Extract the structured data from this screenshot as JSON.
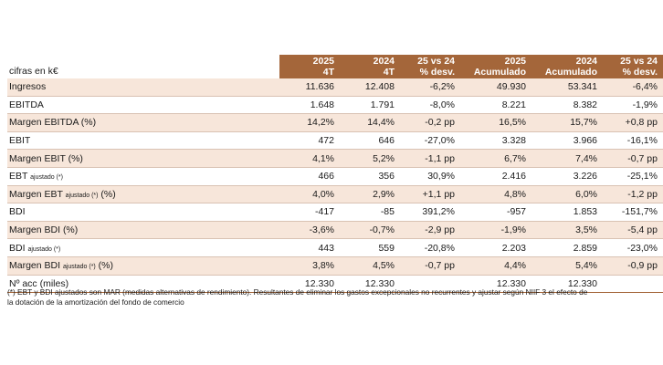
{
  "table": {
    "unit_label": "cifras en k€",
    "columns": [
      {
        "line1": "2025",
        "line2": "4T"
      },
      {
        "line1": "2024",
        "line2": "4T"
      },
      {
        "line1": "25 vs 24",
        "line2": "% desv."
      },
      {
        "line1": "2025",
        "line2": "Acumulado"
      },
      {
        "line1": "2024",
        "line2": "Acumulado"
      },
      {
        "line1": "25 vs 24",
        "line2": "% desv."
      }
    ],
    "rows": [
      {
        "label": "Ingresos",
        "label_sub": "",
        "label_suffix": "",
        "values": [
          "11.636",
          "12.408",
          "-6,2%",
          "49.930",
          "53.341",
          "-6,4%"
        ]
      },
      {
        "label": "EBITDA",
        "label_sub": "",
        "label_suffix": "",
        "values": [
          "1.648",
          "1.791",
          "-8,0%",
          "8.221",
          "8.382",
          "-1,9%"
        ]
      },
      {
        "label": "Margen EBITDA (%)",
        "label_sub": "",
        "label_suffix": "",
        "values": [
          "14,2%",
          "14,4%",
          "-0,2 pp",
          "16,5%",
          "15,7%",
          "+0,8 pp"
        ]
      },
      {
        "label": "EBIT",
        "label_sub": "",
        "label_suffix": "",
        "values": [
          "472",
          "646",
          "-27,0%",
          "3.328",
          "3.966",
          "-16,1%"
        ]
      },
      {
        "label": "Margen EBIT (%)",
        "label_sub": "",
        "label_suffix": "",
        "values": [
          "4,1%",
          "5,2%",
          "-1,1 pp",
          "6,7%",
          "7,4%",
          "-0,7 pp"
        ]
      },
      {
        "label": "EBT",
        "label_sub": "ajustado (*)",
        "label_suffix": "",
        "values": [
          "466",
          "356",
          "30,9%",
          "2.416",
          "3.226",
          "-25,1%"
        ]
      },
      {
        "label": "Margen EBT",
        "label_sub": "ajustado (*)",
        "label_suffix": "(%)",
        "values": [
          "4,0%",
          "2,9%",
          "+1,1 pp",
          "4,8%",
          "6,0%",
          "-1,2 pp"
        ]
      },
      {
        "label": "BDI",
        "label_sub": "",
        "label_suffix": "",
        "values": [
          "-417",
          "-85",
          "391,2%",
          "-957",
          "1.853",
          "-151,7%"
        ]
      },
      {
        "label": "Margen BDI (%)",
        "label_sub": "",
        "label_suffix": "",
        "values": [
          "-3,6%",
          "-0,7%",
          "-2,9 pp",
          "-1,9%",
          "3,5%",
          "-5,4 pp"
        ]
      },
      {
        "label": "BDI",
        "label_sub": "ajustado (*)",
        "label_suffix": "",
        "values": [
          "443",
          "559",
          "-20,8%",
          "2.203",
          "2.859",
          "-23,0%"
        ]
      },
      {
        "label": "Margen BDI",
        "label_sub": "ajustado (*)",
        "label_suffix": "(%)",
        "values": [
          "3,8%",
          "4,5%",
          "-0,7 pp",
          "4,4%",
          "5,4%",
          "-0,9 pp"
        ]
      },
      {
        "label": "Nº acc (miles)",
        "label_sub": "",
        "label_suffix": "",
        "values": [
          "12.330",
          "12.330",
          "",
          "12.330",
          "12.330",
          ""
        ]
      }
    ],
    "shaded_rows": [
      0,
      2,
      4,
      6,
      8,
      10
    ],
    "colors": {
      "header_bg": "#a4663a",
      "shade_bg": "#f7e6da"
    }
  },
  "notes": {
    "line1": "(*) EBT y BDI ajustados son MAR (medidas alternativas de rendimiento). Resultantes de eliminar los gastos excepcionales no recurrentes y ajustar según NIIF 3 el efecto de",
    "line2": "la dotación de la amortización del fondo de comercio"
  }
}
